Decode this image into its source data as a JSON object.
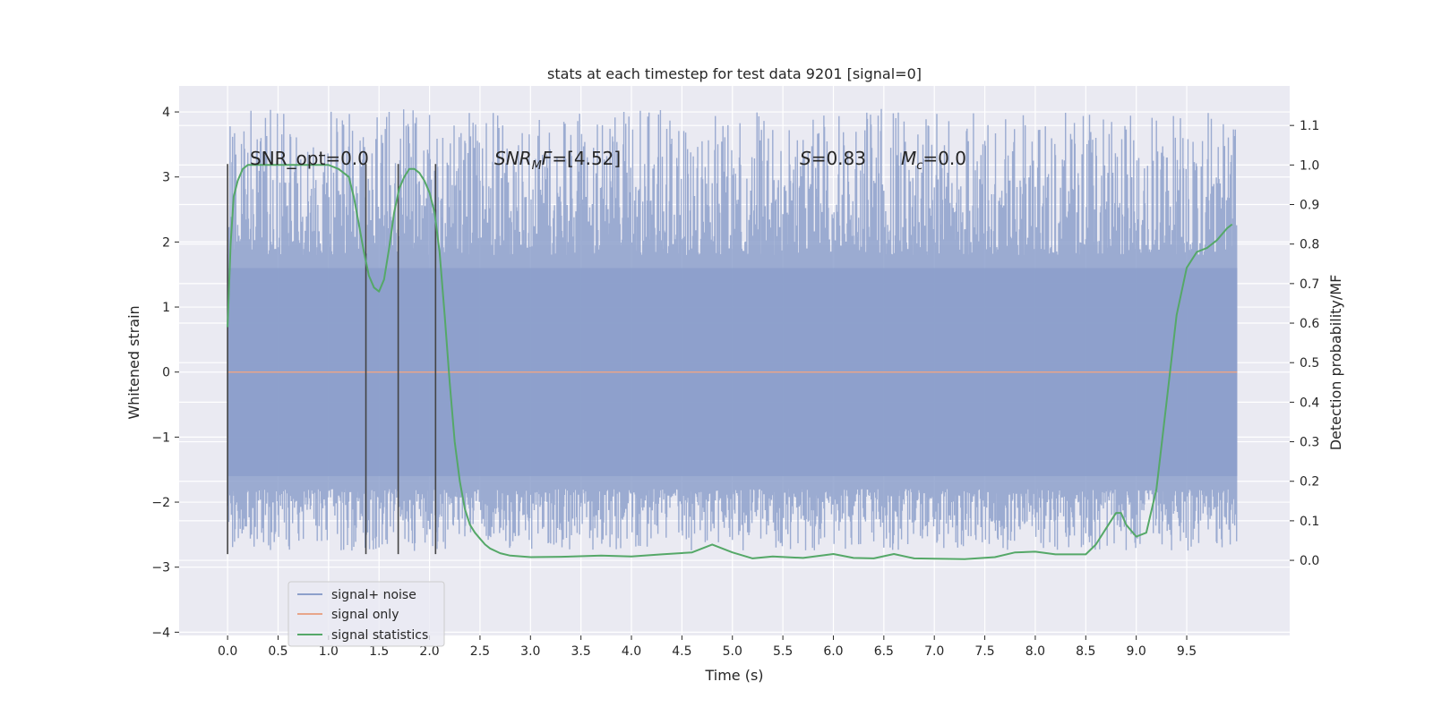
{
  "chart_data": {
    "type": "line",
    "title": "stats at each timestep for test data 9201 [signal=0]",
    "xlabel": "Time (s)",
    "ylabel": "Whitened strain",
    "y2label": "Detection probability/MF",
    "xlim": [
      -0.48,
      10.52
    ],
    "ylim": [
      -4.05,
      4.4
    ],
    "y2lim": [
      -0.19,
      1.2
    ],
    "xticks": [
      "0.0",
      "0.5",
      "1.0",
      "1.5",
      "2.0",
      "2.5",
      "3.0",
      "3.5",
      "4.0",
      "4.5",
      "5.0",
      "5.5",
      "6.0",
      "6.5",
      "7.0",
      "7.5",
      "8.0",
      "8.5",
      "9.0",
      "9.5"
    ],
    "yticks": [
      "4",
      "3",
      "2",
      "1",
      "0",
      "−1",
      "−2",
      "−3",
      "−4"
    ],
    "y2ticks": [
      "1.1",
      "1.0",
      "0.9",
      "0.8",
      "0.7",
      "0.6",
      "0.5",
      "0.4",
      "0.3",
      "0.2",
      "0.1",
      "0.0"
    ],
    "grid": true,
    "legend_position": "lower-left",
    "annotations": {
      "snr_opt": "SNR_opt=0.0",
      "snr_mf_sym": "SNR",
      "snr_mf_sub": "M",
      "snr_mf_sym2": "F",
      "snr_mf_val": "=[4.52]",
      "s_sym": "S",
      "s_val": "=0.83",
      "mc_sym": "M",
      "mc_sub": "c",
      "mc_val": "=0.0"
    },
    "vertical_markers_x": [
      0.0,
      1.37,
      1.69,
      2.06
    ],
    "series": [
      {
        "name": "signal+ noise",
        "color": "#8da0cb",
        "noise_span": [
          -2.8,
          4.05
        ],
        "core_band": [
          -1.6,
          1.6
        ]
      },
      {
        "name": "signal only",
        "color": "#e8a58a",
        "x": [
          0.0,
          10.0
        ],
        "y": [
          0.0,
          0.0
        ]
      },
      {
        "name": "signal statistics",
        "color": "#55a868",
        "x": [
          0.0,
          0.03,
          0.06,
          0.1,
          0.15,
          0.2,
          0.3,
          0.5,
          0.8,
          1.0,
          1.1,
          1.2,
          1.25,
          1.3,
          1.35,
          1.4,
          1.45,
          1.5,
          1.55,
          1.6,
          1.65,
          1.7,
          1.75,
          1.8,
          1.85,
          1.9,
          1.95,
          2.0,
          2.05,
          2.1,
          2.15,
          2.2,
          2.25,
          2.3,
          2.35,
          2.4,
          2.45,
          2.5,
          2.55,
          2.6,
          2.7,
          2.8,
          3.0,
          3.3,
          3.7,
          4.0,
          4.3,
          4.6,
          4.8,
          5.0,
          5.2,
          5.4,
          5.7,
          6.0,
          6.2,
          6.4,
          6.6,
          6.8,
          7.0,
          7.3,
          7.6,
          7.8,
          8.0,
          8.2,
          8.5,
          8.6,
          8.7,
          8.8,
          8.85,
          8.9,
          9.0,
          9.1,
          9.2,
          9.3,
          9.4,
          9.5,
          9.6,
          9.7,
          9.8,
          9.9,
          9.95
        ],
        "y": [
          0.59,
          0.8,
          0.92,
          0.96,
          0.99,
          1.0,
          1.0,
          1.0,
          1.0,
          1.0,
          0.99,
          0.97,
          0.92,
          0.85,
          0.78,
          0.72,
          0.69,
          0.68,
          0.71,
          0.79,
          0.88,
          0.94,
          0.97,
          0.99,
          0.99,
          0.98,
          0.96,
          0.93,
          0.88,
          0.78,
          0.62,
          0.45,
          0.3,
          0.2,
          0.13,
          0.09,
          0.07,
          0.055,
          0.04,
          0.03,
          0.018,
          0.012,
          0.008,
          0.009,
          0.012,
          0.01,
          0.015,
          0.02,
          0.04,
          0.02,
          0.005,
          0.01,
          0.006,
          0.016,
          0.006,
          0.005,
          0.016,
          0.005,
          0.004,
          0.003,
          0.008,
          0.02,
          0.022,
          0.015,
          0.015,
          0.04,
          0.08,
          0.12,
          0.12,
          0.09,
          0.06,
          0.07,
          0.18,
          0.4,
          0.62,
          0.74,
          0.78,
          0.79,
          0.81,
          0.84,
          0.85
        ]
      }
    ]
  }
}
